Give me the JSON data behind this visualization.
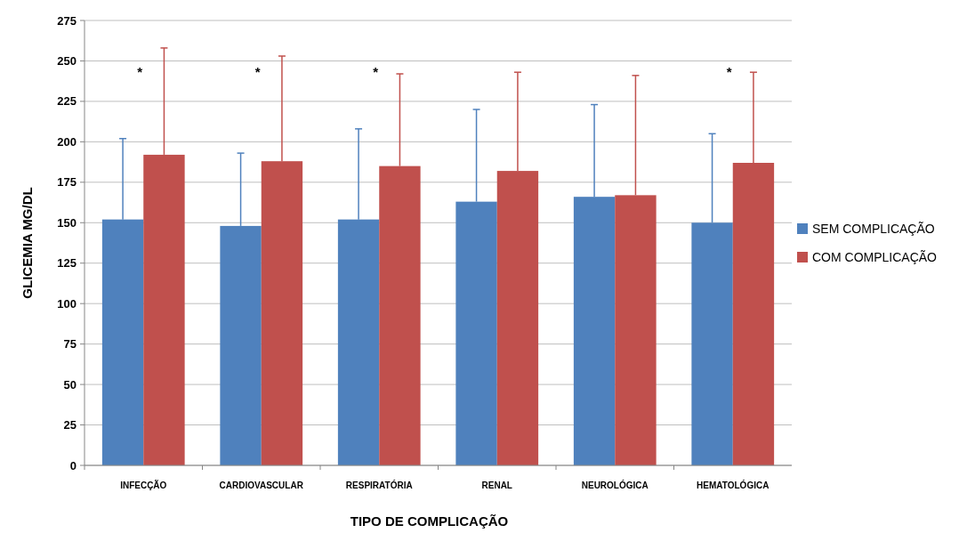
{
  "chart_data": {
    "type": "bar",
    "xlabel": "TIPO DE COMPLICAÇÃO",
    "ylabel": "GLICEMIA MG/DL",
    "categories": [
      "INFECÇÃO",
      "CARDIOVASCULAR",
      "RESPIRATÓRIA",
      "RENAL",
      "NEUROLÓGICA",
      "HEMATOLÓGICA"
    ],
    "series": [
      {
        "name": "SEM COMPLICAÇÃO",
        "color": "#4f81bd",
        "values": [
          152,
          148,
          152,
          163,
          166,
          150
        ],
        "errors": [
          [
            152,
            202
          ],
          [
            148,
            193
          ],
          [
            152,
            208
          ],
          [
            163,
            220
          ],
          [
            166,
            223
          ],
          [
            150,
            205
          ]
        ]
      },
      {
        "name": "COM COMPLICAÇÃO",
        "color": "#c0504d",
        "values": [
          192,
          188,
          185,
          182,
          167,
          187
        ],
        "errors": [
          [
            192,
            258
          ],
          [
            188,
            253
          ],
          [
            185,
            242
          ],
          [
            182,
            243
          ],
          [
            167,
            241
          ],
          [
            187,
            243
          ]
        ]
      }
    ],
    "ylim": [
      0,
      275
    ],
    "yticks": [
      0,
      25,
      50,
      75,
      100,
      125,
      150,
      175,
      200,
      225,
      250,
      275
    ],
    "grid": "y",
    "legend": "right",
    "annotations": [
      "*",
      "*",
      "*",
      "*"
    ]
  }
}
